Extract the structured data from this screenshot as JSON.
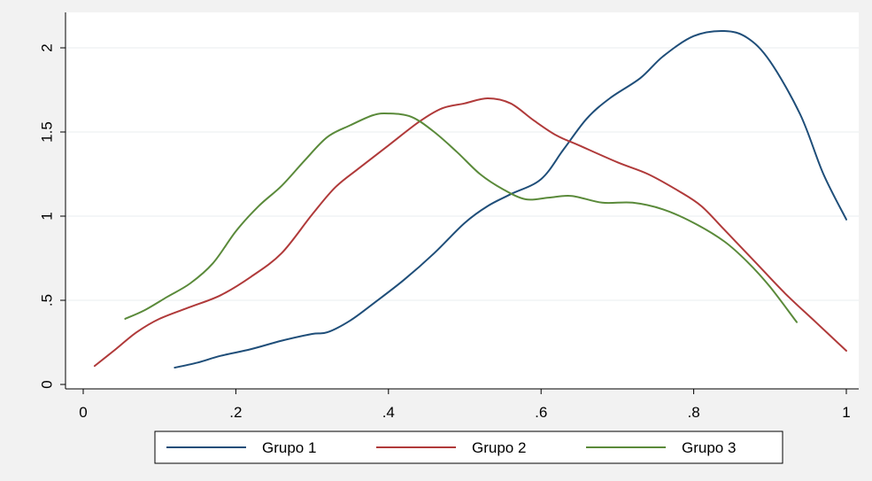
{
  "chart_data": {
    "type": "line",
    "title": "",
    "xlabel": "",
    "ylabel": "",
    "xlim": [
      0,
      1
    ],
    "ylim": [
      0,
      2.1
    ],
    "x_ticks": [
      0,
      0.2,
      0.4,
      0.6,
      0.8,
      1
    ],
    "x_tick_labels": [
      "0",
      ".2",
      ".4",
      ".6",
      ".8",
      "1"
    ],
    "y_ticks": [
      0,
      0.5,
      1,
      1.5,
      2
    ],
    "y_tick_labels": [
      "0",
      ".5",
      "1",
      "1.5",
      "2"
    ],
    "grid": "horizontal",
    "legend_position": "bottom",
    "series": [
      {
        "name": "Grupo 1",
        "color": "#1f4e79",
        "x": [
          0.12,
          0.15,
          0.18,
          0.22,
          0.26,
          0.3,
          0.32,
          0.35,
          0.38,
          0.42,
          0.46,
          0.5,
          0.53,
          0.56,
          0.6,
          0.63,
          0.66,
          0.69,
          0.73,
          0.76,
          0.8,
          0.84,
          0.87,
          0.9,
          0.94,
          0.97,
          1.0
        ],
        "y": [
          0.1,
          0.13,
          0.17,
          0.21,
          0.26,
          0.3,
          0.31,
          0.38,
          0.48,
          0.62,
          0.78,
          0.96,
          1.06,
          1.13,
          1.22,
          1.4,
          1.58,
          1.7,
          1.82,
          1.95,
          2.07,
          2.1,
          2.06,
          1.92,
          1.6,
          1.25,
          0.98
        ]
      },
      {
        "name": "Grupo 2",
        "color": "#b03a3a",
        "x": [
          0.015,
          0.04,
          0.07,
          0.1,
          0.14,
          0.18,
          0.22,
          0.26,
          0.3,
          0.33,
          0.36,
          0.4,
          0.44,
          0.47,
          0.5,
          0.53,
          0.56,
          0.59,
          0.62,
          0.65,
          0.7,
          0.74,
          0.78,
          0.81,
          0.84,
          0.88,
          0.92,
          0.96,
          1.0
        ],
        "y": [
          0.11,
          0.2,
          0.31,
          0.39,
          0.46,
          0.53,
          0.64,
          0.78,
          1.01,
          1.17,
          1.28,
          1.42,
          1.56,
          1.64,
          1.67,
          1.7,
          1.67,
          1.57,
          1.48,
          1.42,
          1.32,
          1.25,
          1.15,
          1.06,
          0.92,
          0.73,
          0.54,
          0.37,
          0.2
        ]
      },
      {
        "name": "Grupo 3",
        "color": "#5a8a3a",
        "x": [
          0.055,
          0.08,
          0.11,
          0.14,
          0.17,
          0.2,
          0.23,
          0.26,
          0.29,
          0.32,
          0.35,
          0.38,
          0.4,
          0.43,
          0.46,
          0.49,
          0.52,
          0.55,
          0.58,
          0.61,
          0.64,
          0.68,
          0.72,
          0.76,
          0.8,
          0.84,
          0.87,
          0.9,
          0.935
        ],
        "y": [
          0.39,
          0.44,
          0.52,
          0.6,
          0.72,
          0.91,
          1.06,
          1.18,
          1.33,
          1.47,
          1.54,
          1.6,
          1.61,
          1.59,
          1.5,
          1.38,
          1.25,
          1.16,
          1.1,
          1.11,
          1.12,
          1.08,
          1.08,
          1.04,
          0.96,
          0.85,
          0.73,
          0.58,
          0.37
        ]
      }
    ]
  }
}
